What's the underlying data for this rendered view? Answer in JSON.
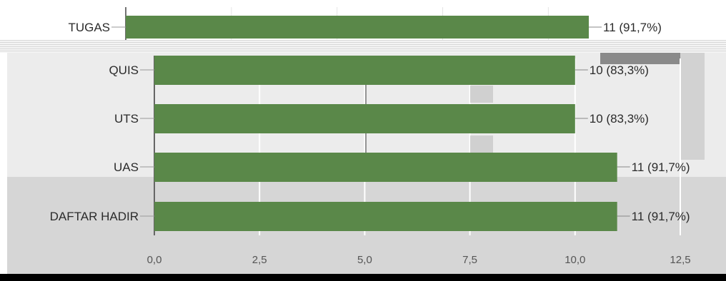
{
  "chart_data": {
    "type": "bar",
    "orientation": "horizontal",
    "categories": [
      "TUGAS",
      "QUIS",
      "UTS",
      "UAS",
      "DAFTAR HADIR"
    ],
    "values": [
      11,
      10,
      10,
      11,
      11
    ],
    "data_labels": [
      "11 (91,7%)",
      "10 (83,3%)",
      "10 (83,3%)",
      "11 (91,7%)",
      "11 (91,7%)"
    ],
    "x_ticks": [
      "0,0",
      "2,5",
      "5,0",
      "7,5",
      "10,0",
      "12,5"
    ],
    "xlim": [
      0,
      12.5
    ],
    "grid": true,
    "bar_color": "#5a8849",
    "title": "",
    "xlabel": "",
    "ylabel": ""
  }
}
